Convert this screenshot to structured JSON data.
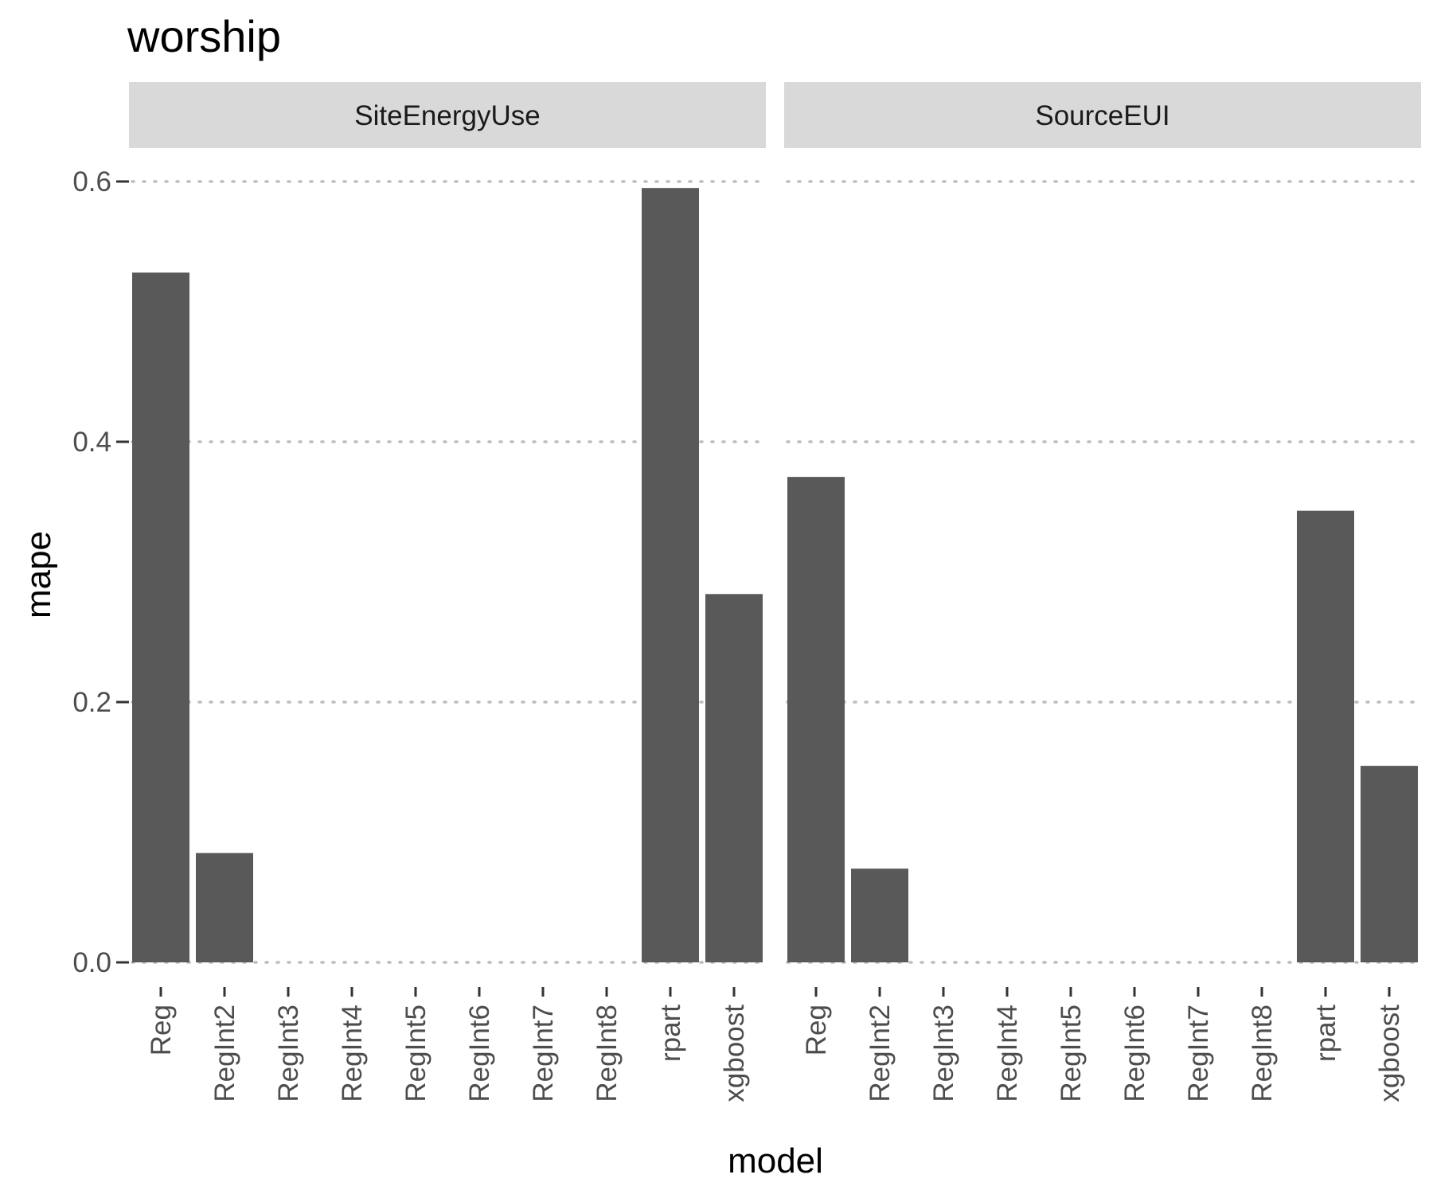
{
  "chart_data": {
    "type": "bar",
    "title": "worship",
    "xlabel": "model",
    "ylabel": "mape",
    "ylim": [
      0,
      0.62
    ],
    "yticks": [
      "0.0",
      "0.2",
      "0.4",
      "0.6"
    ],
    "ytick_values": [
      0,
      0.2,
      0.4,
      0.6
    ],
    "grid": "dotted horizontal major lines",
    "categories": [
      "Reg",
      "RegInt2",
      "RegInt3",
      "RegInt4",
      "RegInt5",
      "RegInt6",
      "RegInt7",
      "RegInt8",
      "rpart",
      "xgboost"
    ],
    "panels": [
      {
        "strip": "SiteEnergyUse",
        "values": [
          0.53,
          0.084,
          0,
          0,
          0,
          0,
          0,
          0,
          0.595,
          0.283
        ]
      },
      {
        "strip": "SourceEUI",
        "values": [
          0.373,
          0.072,
          0,
          0,
          0,
          0,
          0,
          0,
          0.347,
          0.151
        ]
      }
    ],
    "bar_color": "#595959",
    "strip_color": "#d9d9d9"
  }
}
